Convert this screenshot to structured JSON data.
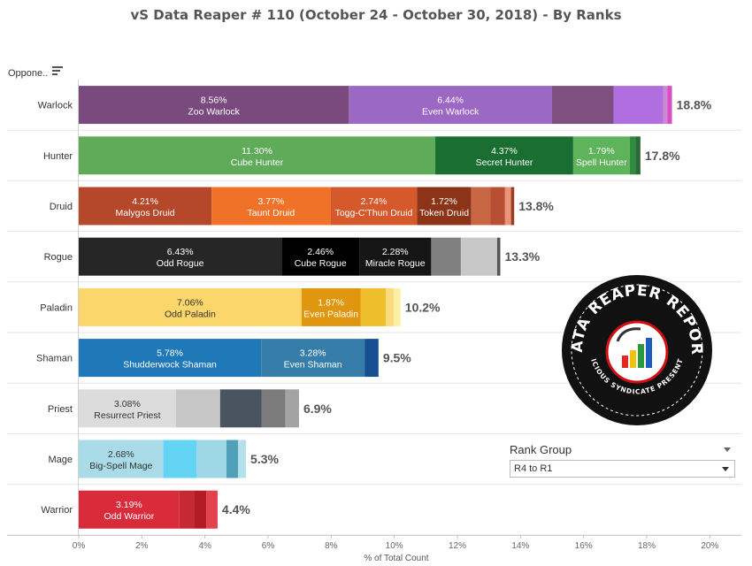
{
  "title": "vS Data Reaper #  110 (October 24 - October 30, 2018) - By Ranks",
  "opponent_header": "Oppone..",
  "filter": {
    "label": "Rank Group",
    "selected": "R4 to R1"
  },
  "logo": {
    "top_text": "DATA REAPER REPORT",
    "bottom_text": "VICIOUS SYNDICATE PRESENTS"
  },
  "chart_data": {
    "type": "bar",
    "orientation": "horizontal",
    "stacked": true,
    "title": "vS Data Reaper #  110 (October 24 - October 30, 2018) - By Ranks",
    "xlabel": "% of Total Count",
    "ylabel": "",
    "xlim": [
      0,
      21
    ],
    "x_ticks": [
      "0%",
      "2%",
      "4%",
      "6%",
      "8%",
      "10%",
      "12%",
      "14%",
      "16%",
      "18%",
      "20%"
    ],
    "grid": false,
    "categories": [
      "Warlock",
      "Hunter",
      "Druid",
      "Rogue",
      "Paladin",
      "Shaman",
      "Priest",
      "Mage",
      "Warrior"
    ],
    "totals": [
      "18.8%",
      "17.8%",
      "13.8%",
      "13.3%",
      "10.2%",
      "9.5%",
      "6.9%",
      "5.3%",
      "4.4%"
    ],
    "rows": [
      {
        "class": "Warlock",
        "total": 18.8,
        "segments": [
          {
            "name": "Zoo Warlock",
            "value": 8.56,
            "label": "8.56%",
            "color": "#7a4a7f"
          },
          {
            "name": "Even Warlock",
            "value": 6.44,
            "label": "6.44%",
            "color": "#9b68c4"
          },
          {
            "value": 1.95,
            "color": "#7d5080"
          },
          {
            "value": 1.57,
            "color": "#b16ee0"
          },
          {
            "value": 0.13,
            "color": "#cc88d2"
          },
          {
            "value": 0.15,
            "color": "#d64dc4"
          }
        ]
      },
      {
        "class": "Hunter",
        "total": 17.8,
        "segments": [
          {
            "name": "Cube Hunter",
            "value": 11.3,
            "label": "11.30%",
            "color": "#60ab5a"
          },
          {
            "name": "Secret Hunter",
            "value": 4.37,
            "label": "4.37%",
            "color": "#1a6e32"
          },
          {
            "name": "Spell Hunter",
            "value": 1.79,
            "label": "1.79%",
            "color": "#5fb35a"
          },
          {
            "value": 0.18,
            "color": "#2f8c3c"
          },
          {
            "value": 0.16,
            "color": "#2a6a38"
          }
        ]
      },
      {
        "class": "Druid",
        "total": 13.8,
        "segments": [
          {
            "name": "Malygos Druid",
            "value": 4.21,
            "label": "4.21%",
            "color": "#b5472a"
          },
          {
            "name": "Taunt Druid",
            "value": 3.77,
            "label": "3.77%",
            "color": "#f07228"
          },
          {
            "name": "Togg-C'Thun Druid",
            "value": 2.74,
            "label": "2.74%",
            "color": "#d6592b"
          },
          {
            "name": "Token Druid",
            "value": 1.72,
            "label": "1.72%",
            "color": "#8b3418"
          },
          {
            "value": 0.6,
            "color": "#c96744"
          },
          {
            "value": 0.47,
            "color": "#b84f32"
          },
          {
            "value": 0.19,
            "color": "#e99478"
          },
          {
            "value": 0.1,
            "color": "#9c3d1f"
          }
        ]
      },
      {
        "class": "Rogue",
        "total": 13.3,
        "segments": [
          {
            "name": "Odd Rogue",
            "value": 6.43,
            "label": "6.43%",
            "color": "#262626"
          },
          {
            "name": "Cube Rogue",
            "value": 2.46,
            "label": "2.46%",
            "color": "#000000"
          },
          {
            "name": "Miracle Rogue",
            "value": 2.28,
            "label": "2.28%",
            "color": "#151515"
          },
          {
            "value": 0.94,
            "color": "#808080"
          },
          {
            "value": 1.15,
            "color": "#c8c8c8"
          },
          {
            "value": 0.1,
            "color": "#555555"
          }
        ]
      },
      {
        "class": "Paladin",
        "total": 10.2,
        "segments": [
          {
            "name": "Odd Paladin",
            "value": 7.06,
            "label": "7.06%",
            "color": "#fbd66a"
          },
          {
            "name": "Even Paladin",
            "value": 1.87,
            "label": "1.87%",
            "color": "#e0960f"
          },
          {
            "value": 0.8,
            "color": "#efbe2c"
          },
          {
            "value": 0.25,
            "color": "#f9dd7c"
          },
          {
            "value": 0.22,
            "color": "#fbf0a6"
          }
        ]
      },
      {
        "class": "Shaman",
        "total": 9.5,
        "segments": [
          {
            "name": "Shudderwock Shaman",
            "value": 5.78,
            "label": "5.78%",
            "color": "#1f78b8"
          },
          {
            "name": "Even Shaman",
            "value": 3.28,
            "label": "3.28%",
            "color": "#367ea9"
          },
          {
            "value": 0.44,
            "color": "#154f91"
          }
        ]
      },
      {
        "class": "Priest",
        "total": 6.9,
        "segments": [
          {
            "name": "Resurrect Priest",
            "value": 3.08,
            "label": "3.08%",
            "color": "#dcdcdc"
          },
          {
            "value": 1.4,
            "color": "#c6c6c6"
          },
          {
            "value": 1.32,
            "color": "#4a5360"
          },
          {
            "value": 0.75,
            "color": "#7b7b7b"
          },
          {
            "value": 0.43,
            "color": "#a3a3a3"
          }
        ]
      },
      {
        "class": "Mage",
        "total": 5.3,
        "segments": [
          {
            "name": "Big-Spell Mage",
            "value": 2.68,
            "label": "2.68%",
            "color": "#a9dbe8"
          },
          {
            "value": 1.06,
            "color": "#64d4f4"
          },
          {
            "value": 0.94,
            "color": "#9ed8e6"
          },
          {
            "value": 0.37,
            "color": "#4fa0b8"
          },
          {
            "value": 0.25,
            "color": "#b3e0ea"
          }
        ]
      },
      {
        "class": "Warrior",
        "total": 4.4,
        "segments": [
          {
            "name": "Odd Warrior",
            "value": 3.19,
            "label": "3.19%",
            "color": "#d92b3a"
          },
          {
            "value": 0.47,
            "color": "#c62834"
          },
          {
            "value": 0.38,
            "color": "#b31b27"
          },
          {
            "value": 0.36,
            "color": "#e2414d"
          }
        ]
      }
    ]
  }
}
